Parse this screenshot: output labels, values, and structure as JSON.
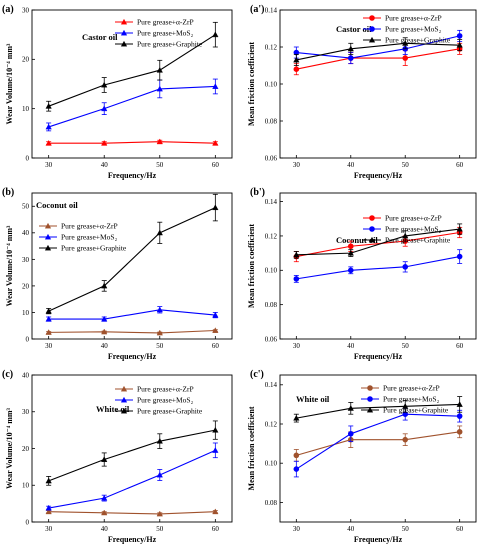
{
  "colors": {
    "alpha_zrp_bright": "#ff0000",
    "alpha_zrp_brown": "#a0522d",
    "mos2": "#0000ff",
    "graphite": "#000000"
  },
  "chart_data": [
    {
      "type": "line",
      "panel_label": "(a)",
      "title": "Castor oil",
      "xlabel": "Frequency/Hz",
      "ylabel": "Wear Volume/10⁻⁴ mm³",
      "x": [
        30,
        40,
        50,
        60
      ],
      "xlim": [
        27,
        63
      ],
      "ylim": [
        0,
        30
      ],
      "yticks": [
        0,
        10,
        20,
        30
      ],
      "legend_position": "top-right",
      "grid": false,
      "series": [
        {
          "name": "Pure grease+α-ZrP",
          "color": "#ff0000",
          "marker": "triangle",
          "values": [
            3.0,
            3.0,
            3.3,
            3.0
          ],
          "errors": [
            0.3,
            0.3,
            0.3,
            0.3
          ]
        },
        {
          "name": "Pure grease+MoS₂",
          "color": "#0000ff",
          "marker": "triangle",
          "values": [
            6.3,
            10.0,
            14.0,
            14.5
          ],
          "errors": [
            0.8,
            1.2,
            1.8,
            1.5
          ]
        },
        {
          "name": "Pure grease+Graphite",
          "color": "#000000",
          "marker": "triangle",
          "values": [
            10.5,
            14.8,
            17.8,
            25.0
          ],
          "errors": [
            1.0,
            1.5,
            2.0,
            2.5
          ]
        }
      ]
    },
    {
      "type": "line",
      "panel_label": "(a')",
      "title": "Castor oil",
      "xlabel": "Frequency/Hz",
      "ylabel": "Mean friction coefficient",
      "x": [
        30,
        40,
        50,
        60
      ],
      "xlim": [
        27,
        63
      ],
      "ylim": [
        0.06,
        0.14
      ],
      "yticks": [
        0.06,
        0.08,
        0.1,
        0.12,
        0.14
      ],
      "legend_position": "top-right",
      "grid": false,
      "series": [
        {
          "name": "Pure grease+α-ZrP",
          "color": "#ff0000",
          "marker": "circle",
          "values": [
            0.108,
            0.114,
            0.114,
            0.119
          ],
          "errors": [
            0.003,
            0.003,
            0.004,
            0.003
          ]
        },
        {
          "name": "Pure grease+MoS₂",
          "color": "#0000ff",
          "marker": "circle",
          "values": [
            0.117,
            0.114,
            0.119,
            0.126
          ],
          "errors": [
            0.003,
            0.003,
            0.003,
            0.003
          ]
        },
        {
          "name": "Pure grease+Graphite",
          "color": "#000000",
          "marker": "triangle",
          "values": [
            0.113,
            0.119,
            0.122,
            0.121
          ],
          "errors": [
            0.003,
            0.003,
            0.003,
            0.003
          ]
        }
      ]
    },
    {
      "type": "line",
      "panel_label": "(b)",
      "title": "Coconut oil",
      "xlabel": "Frequency/Hz",
      "ylabel": "Wear Volume/10⁻⁴ mm³",
      "x": [
        30,
        40,
        50,
        60
      ],
      "xlim": [
        27,
        63
      ],
      "ylim": [
        0,
        55
      ],
      "yticks": [
        0,
        10,
        20,
        30,
        40,
        50
      ],
      "legend_position": "top-left",
      "grid": false,
      "series": [
        {
          "name": "Pure grease+α-ZrP",
          "color": "#a0522d",
          "marker": "triangle",
          "values": [
            2.5,
            2.7,
            2.3,
            3.2
          ],
          "errors": [
            0.3,
            0.3,
            0.3,
            0.3
          ]
        },
        {
          "name": "Pure grease+MoS₂",
          "color": "#0000ff",
          "marker": "triangle",
          "values": [
            7.5,
            7.5,
            11.0,
            9.0
          ],
          "errors": [
            0.8,
            0.8,
            1.2,
            1.0
          ]
        },
        {
          "name": "Pure grease+Graphite",
          "color": "#000000",
          "marker": "triangle",
          "values": [
            10.5,
            20.0,
            40.0,
            49.5
          ],
          "errors": [
            1.0,
            2.0,
            4.0,
            5.0
          ]
        }
      ]
    },
    {
      "type": "line",
      "panel_label": "(b')",
      "title": "Coconut oil",
      "xlabel": "Frequency/Hz",
      "ylabel": "Mean friction coefficient",
      "x": [
        30,
        40,
        50,
        60
      ],
      "xlim": [
        27,
        63
      ],
      "ylim": [
        0.06,
        0.145
      ],
      "yticks": [
        0.06,
        0.08,
        0.1,
        0.12,
        0.14
      ],
      "legend_position": "top-right",
      "grid": false,
      "series": [
        {
          "name": "Pure grease+α-ZrP",
          "color": "#ff0000",
          "marker": "circle",
          "values": [
            0.108,
            0.114,
            0.117,
            0.122
          ],
          "errors": [
            0.003,
            0.003,
            0.003,
            0.003
          ]
        },
        {
          "name": "Pure grease+MoS₂",
          "color": "#0000ff",
          "marker": "circle",
          "values": [
            0.095,
            0.1,
            0.102,
            0.108
          ],
          "errors": [
            0.002,
            0.002,
            0.003,
            0.004
          ]
        },
        {
          "name": "Pure grease+Graphite",
          "color": "#000000",
          "marker": "triangle",
          "values": [
            0.109,
            0.11,
            0.12,
            0.124
          ],
          "errors": [
            0.002,
            0.002,
            0.003,
            0.003
          ]
        }
      ]
    },
    {
      "type": "line",
      "panel_label": "(c)",
      "title": "White oil",
      "xlabel": "Frequency/Hz",
      "ylabel": "Wear Volume/10⁻⁴ mm³",
      "x": [
        30,
        40,
        50,
        60
      ],
      "xlim": [
        27,
        63
      ],
      "ylim": [
        0,
        40
      ],
      "yticks": [
        0,
        10,
        20,
        30,
        40
      ],
      "legend_position": "top-right",
      "grid": false,
      "series": [
        {
          "name": "Pure grease+α-ZrP",
          "color": "#a0522d",
          "marker": "triangle",
          "values": [
            2.8,
            2.5,
            2.2,
            2.8
          ],
          "errors": [
            0.3,
            0.3,
            0.3,
            0.3
          ]
        },
        {
          "name": "Pure grease+MoS₂",
          "color": "#0000ff",
          "marker": "triangle",
          "values": [
            3.8,
            6.5,
            12.8,
            19.5
          ],
          "errors": [
            0.5,
            0.8,
            1.5,
            2.0
          ]
        },
        {
          "name": "Pure grease+Graphite",
          "color": "#000000",
          "marker": "triangle",
          "values": [
            11.2,
            17.0,
            22.0,
            25.0
          ],
          "errors": [
            1.2,
            1.8,
            2.0,
            2.5
          ]
        }
      ]
    },
    {
      "type": "line",
      "panel_label": "(c')",
      "title": "White oil",
      "xlabel": "Frequency/Hz",
      "ylabel": "Mean friction coefficient",
      "x": [
        30,
        40,
        50,
        60
      ],
      "xlim": [
        27,
        63
      ],
      "ylim": [
        0.07,
        0.145
      ],
      "yticks": [
        0.08,
        0.1,
        0.12,
        0.14
      ],
      "legend_position": "top-right",
      "grid": false,
      "series": [
        {
          "name": "Pure grease+α-ZrP",
          "color": "#a0522d",
          "marker": "circle",
          "values": [
            0.104,
            0.112,
            0.112,
            0.116
          ],
          "errors": [
            0.003,
            0.004,
            0.003,
            0.003
          ]
        },
        {
          "name": "Pure grease+MoS₂",
          "color": "#0000ff",
          "marker": "circle",
          "values": [
            0.097,
            0.115,
            0.125,
            0.124
          ],
          "errors": [
            0.004,
            0.004,
            0.003,
            0.003
          ]
        },
        {
          "name": "Pure grease+Graphite",
          "color": "#000000",
          "marker": "triangle",
          "values": [
            0.123,
            0.128,
            0.129,
            0.13
          ],
          "errors": [
            0.002,
            0.003,
            0.003,
            0.004
          ]
        }
      ]
    }
  ]
}
